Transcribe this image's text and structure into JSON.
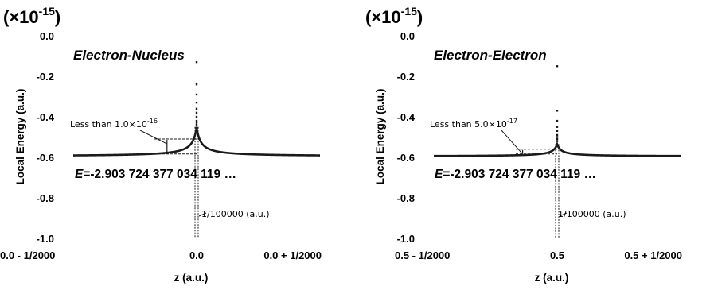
{
  "chart_data": [
    {
      "type": "line",
      "title": "Electron-Nucleus",
      "scale_label": "(×10-15)",
      "xlabel": "z (a.u.)",
      "ylabel": "Local Energy (a.u.)",
      "xlim": [
        -0.0005,
        0.0005
      ],
      "ylim": [
        -1.0,
        0.0
      ],
      "ytick_values": [
        0.0,
        -0.2,
        -0.4,
        -0.6,
        -0.8,
        -1.0
      ],
      "ytick_labels": [
        "0.0",
        "-0.2",
        "-0.4",
        "-0.6",
        "-0.8",
        "-1.0"
      ],
      "xtick_values": [
        -0.0005,
        0.0,
        0.0005
      ],
      "xtick_labels": [
        "0.0 - 1/2000",
        "0.0",
        "0.0 + 1/2000"
      ],
      "baseline_energy": -0.595,
      "cusp": {
        "z": 0.0,
        "peak": -0.45
      },
      "scatter_points": {
        "z": 0.0,
        "values": [
          -0.13,
          -0.24,
          -0.29,
          -0.33,
          -0.36,
          -0.38,
          -0.4,
          -0.42,
          -0.43,
          -0.44
        ]
      },
      "energy_label": "E=-2.903 724 377 034 119 …",
      "annotation_deviation": "Less than 1.0×10-16",
      "annotation_interval": "1/100000 (a.u.)"
    },
    {
      "type": "line",
      "title": "Electron-Electron",
      "scale_label": "(×10-15)",
      "xlabel": "z (a.u.)",
      "ylabel": "Local Energy (a.u.)",
      "xlim": [
        0.4995,
        0.5005
      ],
      "ylim": [
        -1.0,
        0.0
      ],
      "ytick_values": [
        0.0,
        -0.2,
        -0.4,
        -0.6,
        -0.8,
        -1.0
      ],
      "ytick_labels": [
        "0.0",
        "-0.2",
        "-0.4",
        "-0.6",
        "-0.8",
        "-1.0"
      ],
      "xtick_values": [
        0.4995,
        0.5,
        0.5005
      ],
      "xtick_labels": [
        "0.5 - 1/2000",
        "0.5",
        "0.5 + 1/2000"
      ],
      "baseline_energy": -0.595,
      "cusp": {
        "z": 0.5,
        "peak": -0.535
      },
      "scatter_points": {
        "z": 0.5,
        "values": [
          -0.15,
          -0.37,
          -0.42,
          -0.45,
          -0.47,
          -0.49,
          -0.5,
          -0.51,
          -0.52
        ]
      },
      "energy_label": "E=-2.903 724 377 034 119 …",
      "annotation_deviation": "Less than 5.0×10-17",
      "annotation_interval": "1/100000 (a.u.)"
    }
  ]
}
